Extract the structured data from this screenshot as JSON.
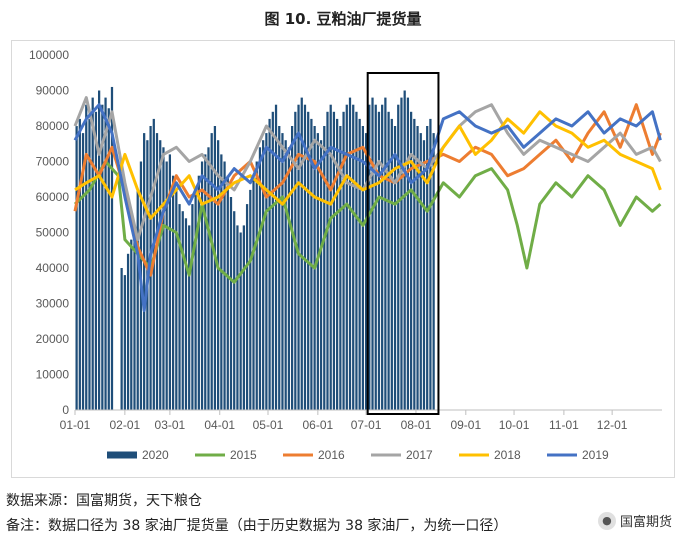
{
  "title": "图 10. 豆粕油厂提货量",
  "source": "数据来源：国富期货，天下粮仓",
  "remark": "备注：数据口径为 38 家油厂提货量（由于历史数据为 38 家油厂，为统一口径）",
  "watermark": "国富期货",
  "watermark_icon": "wechat-icon",
  "chart_data": {
    "type": "bar+line",
    "ylim": [
      0,
      100000
    ],
    "yticks": [
      0,
      10000,
      20000,
      30000,
      40000,
      50000,
      60000,
      70000,
      80000,
      90000,
      100000
    ],
    "ytick_labels": [
      "0",
      "10000",
      "20000",
      "30000",
      "40000",
      "50000",
      "60000",
      "70000",
      "80000",
      "90000",
      "100000"
    ],
    "xticks": [
      "01-01",
      "02-01",
      "03-01",
      "04-01",
      "05-01",
      "06-01",
      "07-01",
      "08-01",
      "09-01",
      "10-01",
      "11-01",
      "12-01"
    ],
    "x_unit": "day_of_year",
    "xlim": [
      1,
      366
    ],
    "grid": false,
    "legend": "bottom",
    "highlight_box_days": [
      183,
      227
    ],
    "series": [
      {
        "name": "2020",
        "kind": "bar",
        "color": "#1f4e79",
        "x": [
          2,
          4,
          6,
          8,
          10,
          12,
          14,
          16,
          18,
          20,
          22,
          24,
          30,
          32,
          34,
          36,
          38,
          40,
          42,
          44,
          46,
          48,
          50,
          52,
          54,
          56,
          58,
          60,
          62,
          64,
          66,
          68,
          70,
          72,
          74,
          76,
          78,
          80,
          82,
          84,
          86,
          88,
          90,
          92,
          94,
          96,
          98,
          100,
          102,
          104,
          106,
          108,
          110,
          112,
          114,
          116,
          118,
          120,
          122,
          124,
          126,
          128,
          130,
          132,
          134,
          136,
          138,
          140,
          142,
          144,
          146,
          148,
          150,
          152,
          154,
          156,
          158,
          160,
          162,
          164,
          166,
          168,
          170,
          172,
          174,
          176,
          178,
          180,
          182,
          184,
          186,
          188,
          190,
          192,
          194,
          196,
          198,
          200,
          202,
          204,
          206,
          208,
          210,
          212,
          214,
          216,
          218,
          220,
          222,
          224
        ],
        "values": [
          80000,
          82000,
          78000,
          86000,
          82000,
          88000,
          84000,
          90000,
          86000,
          88000,
          85000,
          91000,
          40000,
          38000,
          44000,
          48000,
          50000,
          62000,
          70000,
          78000,
          76000,
          80000,
          82000,
          78000,
          76000,
          74000,
          70000,
          72000,
          66000,
          62000,
          58000,
          56000,
          54000,
          52000,
          58000,
          62000,
          66000,
          70000,
          72000,
          74000,
          78000,
          80000,
          76000,
          72000,
          70000,
          66000,
          60000,
          56000,
          52000,
          50000,
          52000,
          58000,
          62000,
          66000,
          70000,
          74000,
          76000,
          78000,
          82000,
          84000,
          86000,
          80000,
          78000,
          76000,
          74000,
          80000,
          84000,
          86000,
          88000,
          86000,
          84000,
          82000,
          80000,
          78000,
          76000,
          80000,
          84000,
          86000,
          84000,
          82000,
          80000,
          84000,
          86000,
          88000,
          86000,
          84000,
          82000,
          80000,
          78000,
          86000,
          88000,
          86000,
          84000,
          86000,
          88000,
          84000,
          82000,
          80000,
          86000,
          88000,
          90000,
          88000,
          84000,
          82000,
          80000,
          78000,
          76000,
          80000,
          82000,
          78000
        ]
      },
      {
        "name": "2015",
        "kind": "line",
        "color": "#70ad47",
        "x": [
          1,
          10,
          20,
          28,
          32,
          40,
          48,
          56,
          64,
          72,
          80,
          90,
          100,
          110,
          120,
          130,
          140,
          150,
          160,
          170,
          180,
          190,
          200,
          210,
          220,
          230,
          240,
          250,
          260,
          270,
          276,
          282,
          290,
          300,
          310,
          320,
          330,
          340,
          350,
          360,
          365
        ],
        "values": [
          58000,
          62000,
          70000,
          66000,
          48000,
          44000,
          40000,
          52000,
          50000,
          38000,
          58000,
          40000,
          36000,
          42000,
          56000,
          60000,
          44000,
          40000,
          54000,
          58000,
          52000,
          60000,
          58000,
          62000,
          56000,
          64000,
          60000,
          66000,
          68000,
          62000,
          52000,
          40000,
          58000,
          64000,
          60000,
          66000,
          62000,
          52000,
          60000,
          56000,
          58000
        ]
      },
      {
        "name": "2016",
        "kind": "line",
        "color": "#ed7d31",
        "x": [
          1,
          8,
          16,
          24,
          32,
          40,
          48,
          56,
          64,
          72,
          80,
          90,
          100,
          110,
          120,
          130,
          140,
          150,
          160,
          170,
          180,
          190,
          200,
          210,
          220,
          230,
          240,
          250,
          260,
          270,
          280,
          290,
          300,
          310,
          320,
          330,
          340,
          350,
          360,
          365
        ],
        "values": [
          56000,
          72000,
          66000,
          74000,
          62000,
          46000,
          38000,
          56000,
          66000,
          60000,
          62000,
          58000,
          66000,
          70000,
          60000,
          64000,
          72000,
          70000,
          62000,
          72000,
          74000,
          66000,
          64000,
          68000,
          70000,
          72000,
          70000,
          74000,
          72000,
          66000,
          68000,
          72000,
          76000,
          70000,
          78000,
          84000,
          74000,
          86000,
          72000,
          78000
        ]
      },
      {
        "name": "2017",
        "kind": "line",
        "color": "#a5a5a5",
        "x": [
          1,
          8,
          16,
          24,
          32,
          40,
          48,
          56,
          64,
          72,
          80,
          90,
          100,
          110,
          120,
          130,
          140,
          150,
          160,
          170,
          180,
          190,
          200,
          210,
          220,
          230,
          240,
          250,
          260,
          270,
          280,
          290,
          300,
          310,
          320,
          330,
          340,
          350,
          360,
          365
        ],
        "values": [
          80000,
          88000,
          72000,
          84000,
          64000,
          48000,
          60000,
          72000,
          74000,
          70000,
          72000,
          66000,
          62000,
          70000,
          80000,
          74000,
          68000,
          76000,
          72000,
          64000,
          62000,
          70000,
          64000,
          72000,
          68000,
          74000,
          80000,
          84000,
          86000,
          78000,
          72000,
          76000,
          74000,
          72000,
          70000,
          74000,
          78000,
          72000,
          74000,
          70000
        ]
      },
      {
        "name": "2018",
        "kind": "line",
        "color": "#ffc000",
        "x": [
          1,
          8,
          16,
          24,
          32,
          40,
          48,
          56,
          64,
          72,
          80,
          90,
          100,
          110,
          120,
          130,
          140,
          150,
          160,
          170,
          180,
          190,
          200,
          210,
          220,
          230,
          240,
          250,
          260,
          270,
          280,
          290,
          300,
          310,
          320,
          330,
          340,
          350,
          360,
          365
        ],
        "values": [
          62000,
          64000,
          66000,
          60000,
          72000,
          62000,
          54000,
          58000,
          62000,
          66000,
          58000,
          60000,
          64000,
          66000,
          62000,
          58000,
          64000,
          60000,
          58000,
          66000,
          62000,
          64000,
          68000,
          70000,
          64000,
          74000,
          80000,
          72000,
          76000,
          82000,
          78000,
          84000,
          80000,
          78000,
          74000,
          76000,
          72000,
          70000,
          68000,
          62000
        ]
      },
      {
        "name": "2019",
        "kind": "line",
        "color": "#4472c4",
        "x": [
          1,
          8,
          16,
          24,
          32,
          40,
          44,
          48,
          56,
          64,
          72,
          80,
          90,
          100,
          110,
          120,
          130,
          140,
          150,
          160,
          170,
          180,
          190,
          200,
          210,
          220,
          230,
          240,
          250,
          260,
          270,
          280,
          290,
          300,
          310,
          320,
          330,
          340,
          350,
          360,
          365
        ],
        "values": [
          76000,
          82000,
          86000,
          78000,
          60000,
          44000,
          28000,
          44000,
          56000,
          64000,
          58000,
          66000,
          62000,
          68000,
          64000,
          74000,
          70000,
          78000,
          68000,
          74000,
          72000,
          70000,
          66000,
          72000,
          64000,
          68000,
          82000,
          84000,
          80000,
          78000,
          80000,
          74000,
          78000,
          82000,
          80000,
          84000,
          78000,
          82000,
          80000,
          84000,
          76000
        ]
      }
    ]
  }
}
